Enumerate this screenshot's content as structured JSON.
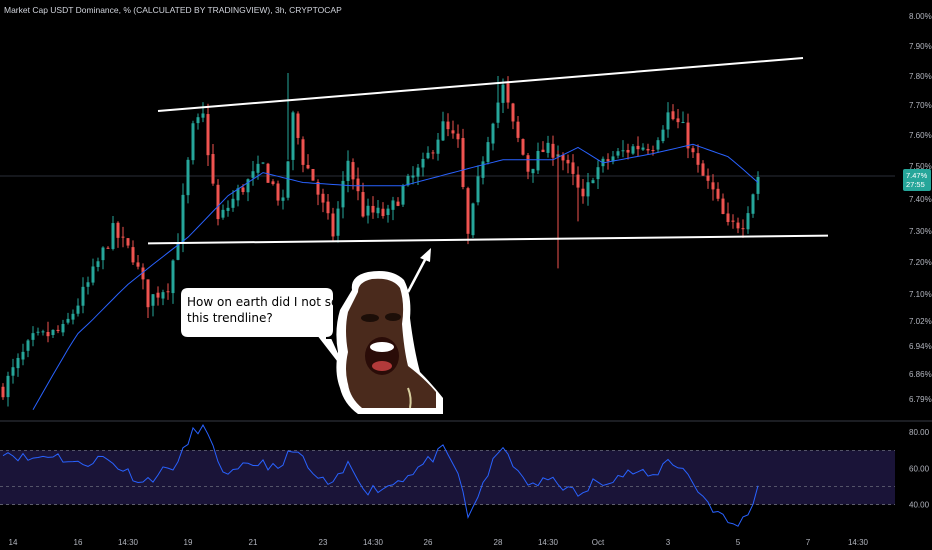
{
  "header": {
    "title": "Market Cap USDT Dominance, % (CALCULATED BY TRADINGVIEW), 3h, CRYPTOCAP"
  },
  "colors": {
    "up": "#26a69a",
    "down": "#ef5350",
    "ma": "#2962ff",
    "rsi": "#2962ff",
    "rsi_band": "#1a1438",
    "trendline": "#ffffff",
    "badge": "#26a69a"
  },
  "callout": {
    "line1": "How on earth did I not see",
    "line2": "this trendline?"
  },
  "badge": {
    "price": "7.47%",
    "time": "27:55"
  },
  "chart_data": [
    {
      "type": "candlestick",
      "title": "Market Cap USDT Dominance, % (CALCULATED BY TRADINGVIEW), 3h, CRYPTOCAP",
      "y_unit": "%",
      "ylim": [
        6.75,
        8.02
      ],
      "y_ticks": [
        "8.00%",
        "7.90%",
        "7.80%",
        "7.70%",
        "7.60%",
        "7.50%",
        "7.40%",
        "7.30%",
        "7.20%",
        "7.10%",
        "7.02%",
        "6.94%",
        "6.86%",
        "6.79%"
      ],
      "y_tick_values": [
        8.0,
        7.9,
        7.8,
        7.7,
        7.6,
        7.5,
        7.4,
        7.3,
        7.2,
        7.1,
        7.02,
        6.94,
        6.86,
        6.79
      ],
      "x_ticks": [
        "14",
        "16",
        "14:30",
        "19",
        "21",
        "23",
        "14:30",
        "26",
        "28",
        "14:30",
        "Oct",
        "3",
        "5",
        "7",
        "14:30"
      ],
      "x_tick_index": [
        2,
        15,
        25,
        37,
        50,
        64,
        74,
        85,
        99,
        109,
        119,
        133,
        147,
        161,
        171
      ],
      "n_bars": 152,
      "close_anchors": [
        [
          0,
          6.82
        ],
        [
          6,
          6.96
        ],
        [
          12,
          6.99
        ],
        [
          17,
          7.13
        ],
        [
          22,
          7.3
        ],
        [
          26,
          7.22
        ],
        [
          29,
          7.08
        ],
        [
          33,
          7.13
        ],
        [
          35,
          7.28
        ],
        [
          38,
          7.62
        ],
        [
          40,
          7.66
        ],
        [
          43,
          7.33
        ],
        [
          47,
          7.42
        ],
        [
          52,
          7.5
        ],
        [
          56,
          7.38
        ],
        [
          58,
          7.66
        ],
        [
          60,
          7.52
        ],
        [
          62,
          7.46
        ],
        [
          66,
          7.29
        ],
        [
          69,
          7.52
        ],
        [
          72,
          7.36
        ],
        [
          77,
          7.35
        ],
        [
          80,
          7.43
        ],
        [
          84,
          7.5
        ],
        [
          88,
          7.63
        ],
        [
          91,
          7.57
        ],
        [
          93,
          7.28
        ],
        [
          96,
          7.53
        ],
        [
          98,
          7.66
        ],
        [
          100,
          7.76
        ],
        [
          102,
          7.63
        ],
        [
          105,
          7.49
        ],
        [
          108,
          7.55
        ],
        [
          111,
          7.55
        ],
        [
          114,
          7.46
        ],
        [
          116,
          7.39
        ],
        [
          118,
          7.48
        ],
        [
          122,
          7.53
        ],
        [
          126,
          7.56
        ],
        [
          130,
          7.57
        ],
        [
          133,
          7.67
        ],
        [
          136,
          7.62
        ],
        [
          139,
          7.49
        ],
        [
          142,
          7.42
        ],
        [
          145,
          7.31
        ],
        [
          148,
          7.33
        ],
        [
          151,
          7.47
        ]
      ],
      "ma_anchors": [
        [
          6,
          6.76
        ],
        [
          15,
          6.98
        ],
        [
          25,
          7.13
        ],
        [
          37,
          7.28
        ],
        [
          45,
          7.41
        ],
        [
          52,
          7.48
        ],
        [
          60,
          7.45
        ],
        [
          70,
          7.44
        ],
        [
          80,
          7.44
        ],
        [
          90,
          7.48
        ],
        [
          100,
          7.52
        ],
        [
          110,
          7.52
        ],
        [
          115,
          7.56
        ],
        [
          120,
          7.51
        ],
        [
          130,
          7.54
        ],
        [
          138,
          7.57
        ],
        [
          145,
          7.53
        ],
        [
          151,
          7.45
        ]
      ],
      "trendlines": [
        {
          "from": [
            31,
            7.68
          ],
          "to": [
            160,
            7.86
          ]
        },
        {
          "from": [
            29,
            7.26
          ],
          "to": [
            165,
            7.285
          ]
        }
      ],
      "last_price": 7.47
    },
    {
      "type": "line",
      "title": "RSI",
      "ylim": [
        27,
        84
      ],
      "y_ticks": [
        "80.00",
        "60.00",
        "40.00"
      ],
      "y_tick_values": [
        80,
        60,
        40
      ],
      "band": [
        40,
        70
      ],
      "midline": 50,
      "rsi_anchors": [
        [
          0,
          70
        ],
        [
          5,
          65
        ],
        [
          10,
          68
        ],
        [
          15,
          62
        ],
        [
          20,
          66
        ],
        [
          25,
          58
        ],
        [
          28,
          52
        ],
        [
          31,
          57
        ],
        [
          35,
          63
        ],
        [
          38,
          80
        ],
        [
          40,
          84
        ],
        [
          42,
          70
        ],
        [
          45,
          55
        ],
        [
          48,
          60
        ],
        [
          52,
          64
        ],
        [
          55,
          58
        ],
        [
          58,
          72
        ],
        [
          62,
          56
        ],
        [
          66,
          50
        ],
        [
          69,
          62
        ],
        [
          73,
          48
        ],
        [
          77,
          50
        ],
        [
          80,
          55
        ],
        [
          84,
          62
        ],
        [
          88,
          70
        ],
        [
          91,
          58
        ],
        [
          93,
          32
        ],
        [
          96,
          52
        ],
        [
          99,
          68
        ],
        [
          101,
          70
        ],
        [
          103,
          56
        ],
        [
          106,
          50
        ],
        [
          110,
          55
        ],
        [
          113,
          48
        ],
        [
          116,
          45
        ],
        [
          118,
          52
        ],
        [
          122,
          55
        ],
        [
          126,
          58
        ],
        [
          130,
          55
        ],
        [
          133,
          65
        ],
        [
          136,
          60
        ],
        [
          139,
          48
        ],
        [
          142,
          38
        ],
        [
          145,
          30
        ],
        [
          147,
          28
        ],
        [
          149,
          35
        ],
        [
          151,
          50
        ]
      ]
    }
  ]
}
